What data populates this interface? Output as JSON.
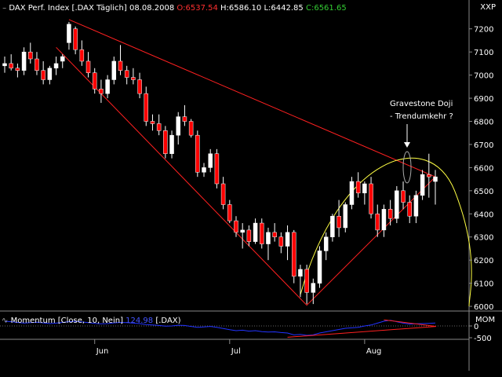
{
  "header": {
    "symbol": "DAX Perf. Index [.DAX",
    "period": "Täglich]",
    "date": "08.08.2008",
    "open_label": "O:",
    "open": "6537.54",
    "high_label": "H:",
    "high": "6586.10",
    "low_label": "L:",
    "low": "6442.85",
    "close_label": "C:",
    "close": "6561.65",
    "open_color": "#ff3030",
    "close_color": "#33cc33",
    "scale_label": "XXP"
  },
  "annotation": {
    "line1": "Gravestone Doji",
    "line2": "- Trendumkehr ?"
  },
  "momentum": {
    "label_prefix": "Momentum [Close, 10, Nein]",
    "value": "124.98",
    "label_suffix": "[.DAX)",
    "scale_label": "MOM",
    "ticks": [
      "0",
      "-500"
    ],
    "line_color": "#2233ff"
  },
  "chart_data": {
    "type": "candlestick",
    "x_labels": [
      "Jun",
      "Jul",
      "Aug"
    ],
    "y_ticks": [
      6000,
      6100,
      6200,
      6300,
      6400,
      6500,
      6600,
      6700,
      6800,
      6900,
      7000,
      7100,
      7200
    ],
    "ylim": [
      5990,
      7250
    ],
    "up_color": "#ffffff",
    "down_color": "#ff0000",
    "candles": [
      [
        7040,
        7080,
        7010,
        7050
      ],
      [
        7050,
        7090,
        7020,
        7030
      ],
      [
        7030,
        7050,
        6990,
        7020
      ],
      [
        7020,
        7120,
        7000,
        7100
      ],
      [
        7100,
        7140,
        7050,
        7070
      ],
      [
        7070,
        7100,
        7000,
        7020
      ],
      [
        7020,
        7060,
        6960,
        6980
      ],
      [
        6980,
        7040,
        6960,
        7030
      ],
      [
        7030,
        7080,
        7000,
        7050
      ],
      [
        7060,
        7090,
        7030,
        7080
      ],
      [
        7140,
        7230,
        7110,
        7220
      ],
      [
        7200,
        7210,
        7090,
        7110
      ],
      [
        7110,
        7150,
        7040,
        7060
      ],
      [
        7060,
        7100,
        6990,
        7010
      ],
      [
        7010,
        7030,
        6920,
        6940
      ],
      [
        6940,
        6980,
        6880,
        6920
      ],
      [
        6920,
        7000,
        6900,
        6980
      ],
      [
        6980,
        7080,
        6960,
        7060
      ],
      [
        7060,
        7130,
        7000,
        7020
      ],
      [
        7020,
        7040,
        6960,
        6990
      ],
      [
        6990,
        7030,
        6960,
        6980
      ],
      [
        6980,
        7010,
        6900,
        6920
      ],
      [
        6920,
        6950,
        6780,
        6800
      ],
      [
        6800,
        6830,
        6760,
        6790
      ],
      [
        6790,
        6830,
        6740,
        6760
      ],
      [
        6760,
        6780,
        6640,
        6660
      ],
      [
        6660,
        6760,
        6640,
        6740
      ],
      [
        6740,
        6840,
        6700,
        6820
      ],
      [
        6820,
        6870,
        6780,
        6800
      ],
      [
        6800,
        6810,
        6730,
        6740
      ],
      [
        6740,
        6760,
        6560,
        6580
      ],
      [
        6580,
        6620,
        6560,
        6600
      ],
      [
        6600,
        6680,
        6580,
        6660
      ],
      [
        6660,
        6680,
        6510,
        6530
      ],
      [
        6530,
        6560,
        6420,
        6440
      ],
      [
        6440,
        6460,
        6360,
        6370
      ],
      [
        6370,
        6390,
        6300,
        6320
      ],
      [
        6320,
        6360,
        6250,
        6330
      ],
      [
        6330,
        6350,
        6260,
        6280
      ],
      [
        6280,
        6380,
        6270,
        6360
      ],
      [
        6360,
        6380,
        6250,
        6270
      ],
      [
        6270,
        6340,
        6200,
        6320
      ],
      [
        6320,
        6360,
        6280,
        6300
      ],
      [
        6300,
        6320,
        6230,
        6260
      ],
      [
        6260,
        6350,
        6200,
        6320
      ],
      [
        6320,
        6330,
        6100,
        6130
      ],
      [
        6130,
        6180,
        6040,
        6160
      ],
      [
        6160,
        6180,
        6010,
        6060
      ],
      [
        6060,
        6120,
        6010,
        6100
      ],
      [
        6100,
        6260,
        6080,
        6240
      ],
      [
        6240,
        6320,
        6200,
        6300
      ],
      [
        6300,
        6400,
        6280,
        6390
      ],
      [
        6390,
        6460,
        6300,
        6340
      ],
      [
        6340,
        6450,
        6320,
        6440
      ],
      [
        6440,
        6560,
        6420,
        6540
      ],
      [
        6540,
        6580,
        6470,
        6490
      ],
      [
        6490,
        6540,
        6440,
        6530
      ],
      [
        6530,
        6560,
        6380,
        6400
      ],
      [
        6400,
        6440,
        6300,
        6330
      ],
      [
        6330,
        6440,
        6300,
        6420
      ],
      [
        6420,
        6460,
        6350,
        6380
      ],
      [
        6380,
        6520,
        6360,
        6500
      ],
      [
        6500,
        6540,
        6420,
        6450
      ],
      [
        6450,
        6480,
        6360,
        6390
      ],
      [
        6390,
        6500,
        6360,
        6480
      ],
      [
        6480,
        6590,
        6460,
        6570
      ],
      [
        6570,
        6660,
        6470,
        6560
      ],
      [
        6540,
        6590,
        6440,
        6560
      ]
    ],
    "momentum_values": [
      200,
      180,
      150,
      120,
      140,
      160,
      130,
      100,
      120,
      150,
      180,
      200,
      170,
      140,
      110,
      90,
      100,
      130,
      150,
      140,
      120,
      100,
      60,
      40,
      20,
      -10,
      0,
      30,
      20,
      -20,
      -60,
      -40,
      -20,
      -60,
      -110,
      -160,
      -200,
      -180,
      -220,
      -200,
      -240,
      -260,
      -250,
      -280,
      -300,
      -380,
      -360,
      -400,
      -380,
      -300,
      -250,
      -200,
      -150,
      -100,
      -80,
      -60,
      0,
      40,
      120,
      200,
      240,
      180,
      120,
      80,
      90,
      100,
      110,
      125
    ]
  }
}
